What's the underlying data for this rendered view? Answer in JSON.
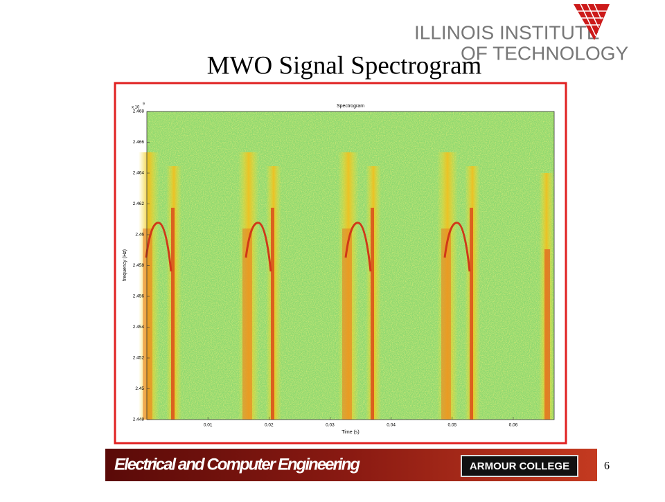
{
  "header": {
    "logo_line1": "ILLINOIS INSTITUTE",
    "logo_line2": "OF TECHNOLOGY"
  },
  "title": "MWO Signal Spectrogram",
  "chart_data": {
    "type": "spectrogram",
    "title": "Spectrogram",
    "xlabel": "Time (s)",
    "ylabel": "frequency (Hz)",
    "y_offset": {
      "base": "x 10",
      "exponent": "9"
    },
    "xlim": [
      0,
      0.0667
    ],
    "xticks": [
      0.01,
      0.02,
      0.03,
      0.04,
      0.05,
      0.06
    ],
    "ylim": [
      2.448,
      2.468
    ],
    "yticks": [
      2.448,
      2.45,
      2.452,
      2.454,
      2.456,
      2.458,
      2.46,
      2.462,
      2.464,
      2.466,
      2.468
    ]
  },
  "footer": {
    "department": "Electrical and Computer Engineering",
    "college": "ARMOUR COLLEGE",
    "page_number": "6"
  }
}
